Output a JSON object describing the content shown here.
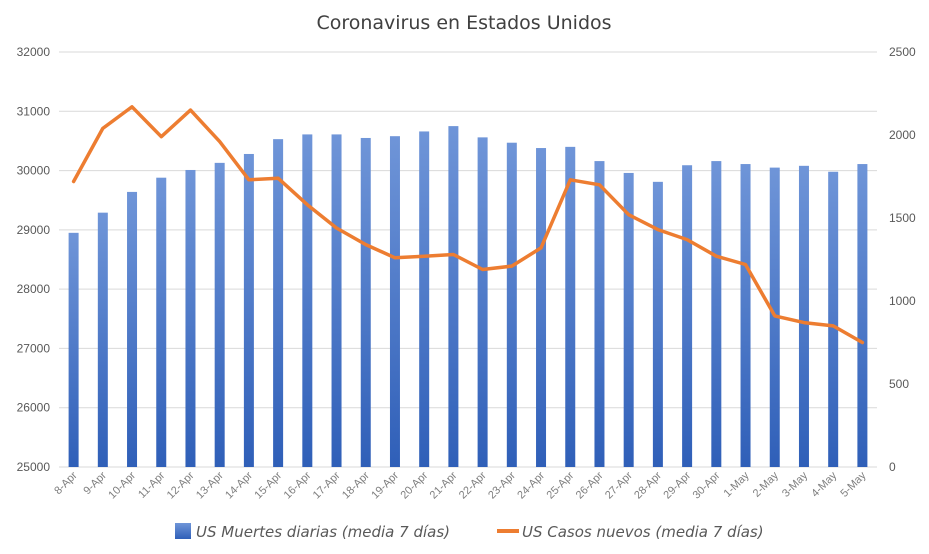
{
  "chart_data": {
    "type": "bar+line",
    "title": "Coronavirus en Estados Unidos",
    "categories": [
      "8-Apr",
      "9-Apr",
      "10-Apr",
      "11-Apr",
      "12-Apr",
      "13-Apr",
      "14-Apr",
      "15-Apr",
      "16-Apr",
      "17-Apr",
      "18-Apr",
      "19-Apr",
      "20-Apr",
      "21-Apr",
      "22-Apr",
      "23-Apr",
      "24-Apr",
      "25-Apr",
      "26-Apr",
      "27-Apr",
      "28-Apr",
      "29-Apr",
      "30-Apr",
      "1-May",
      "2-May",
      "3-May",
      "4-May",
      "5-May"
    ],
    "series": [
      {
        "name": "US Muertes diarias (media 7 días)",
        "type": "bar",
        "axis": "left",
        "color": "#4472c4",
        "values": [
          28950,
          29290,
          29640,
          29880,
          30010,
          30130,
          30280,
          30530,
          30610,
          30610,
          30550,
          30580,
          30660,
          30750,
          30560,
          30470,
          30380,
          30400,
          30160,
          29960,
          29810,
          30090,
          30160,
          30110,
          30050,
          30080,
          29980,
          30110
        ]
      },
      {
        "name": "US Casos nuevos (media 7 días)",
        "type": "line",
        "axis": "right",
        "color": "#ed7d31",
        "values": [
          1720,
          2040,
          2170,
          1990,
          2150,
          1960,
          1730,
          1740,
          1580,
          1440,
          1340,
          1260,
          1270,
          1280,
          1190,
          1210,
          1320,
          1730,
          1700,
          1520,
          1430,
          1370,
          1270,
          1220,
          910,
          870,
          850,
          750
        ]
      }
    ],
    "y_left": {
      "min": 25000,
      "max": 32000,
      "ticks": [
        25000,
        26000,
        27000,
        28000,
        29000,
        30000,
        31000,
        32000
      ]
    },
    "y_right": {
      "min": 0,
      "max": 2500,
      "ticks": [
        0,
        500,
        1000,
        1500,
        2000,
        2500
      ]
    },
    "grid": true,
    "legend": "bottom"
  }
}
